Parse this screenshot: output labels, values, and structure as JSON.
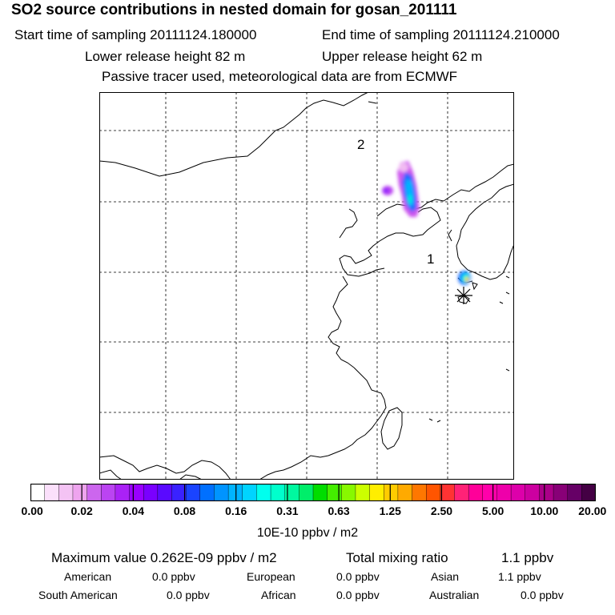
{
  "header": {
    "title": "SO2 source contributions in nested domain for gosan_201111",
    "start_time": "Start time of sampling 20111124.180000",
    "end_time": "End time of sampling 20111124.210000",
    "lower_height": "Lower release height   82 m",
    "upper_height": "Upper release height   62 m",
    "note": "Passive tracer used, meteorological data are from ECMWF"
  },
  "map": {
    "labels": [
      "2",
      "1"
    ],
    "marker": "receptor-asterisk"
  },
  "colorbar": {
    "colors": [
      "#ffffff",
      "#fbe0fb",
      "#f4c3f4",
      "#eea4ee",
      "#cc66ee",
      "#bb44f2",
      "#aa22f6",
      "#9900ff",
      "#7a00ff",
      "#5a0aff",
      "#3a22ff",
      "#1a44ff",
      "#0070ff",
      "#0094ff",
      "#00b4ff",
      "#00d4ff",
      "#00ffee",
      "#00ffcc",
      "#00f8a0",
      "#00ee6a",
      "#00dd00",
      "#44ee00",
      "#88f800",
      "#ccff00",
      "#ffee00",
      "#ffcc00",
      "#ffaa00",
      "#ff7700",
      "#ff5500",
      "#ff3333",
      "#ff2277",
      "#ff0099",
      "#ff00aa",
      "#ee00aa",
      "#dd00aa",
      "#cc00a0",
      "#aa0088",
      "#880077",
      "#660066",
      "#440044"
    ],
    "ticks": [
      "0.00",
      "0.02",
      "0.04",
      "0.08",
      "0.16",
      "0.31",
      "0.63",
      "1.25",
      "2.50",
      "5.00",
      "10.00",
      "20.00"
    ],
    "units": "10E-10 ppbv / m2"
  },
  "summary": {
    "max_value": "Maximum value  0.262E-09 ppbv / m2",
    "total_label": "Total mixing ratio",
    "total_value": "1.1 ppbv"
  },
  "regions": [
    {
      "name": "American",
      "value": "0.0 ppbv"
    },
    {
      "name": "European",
      "value": "0.0 ppbv"
    },
    {
      "name": "Asian",
      "value": "1.1 ppbv"
    },
    {
      "name": "South American",
      "value": "0.0 ppbv"
    },
    {
      "name": "African",
      "value": "0.0 ppbv"
    },
    {
      "name": "Australian",
      "value": "0.0 ppbv"
    }
  ]
}
